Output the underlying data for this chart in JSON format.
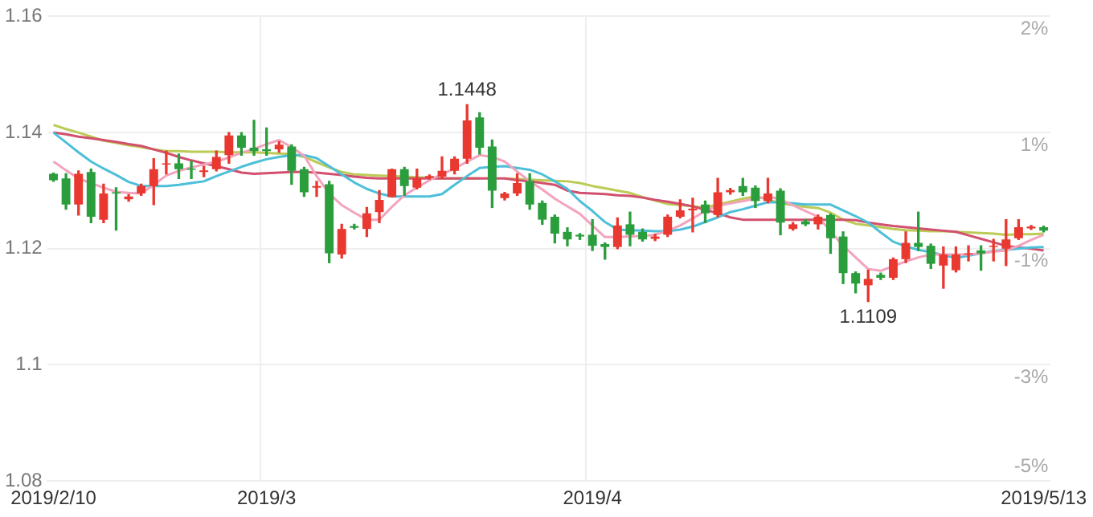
{
  "chart_data": {
    "type": "candlestick",
    "categories": [
      "2019/2/10",
      null,
      null,
      null,
      null,
      null,
      null,
      null,
      null,
      null,
      null,
      null,
      null,
      null,
      null,
      null,
      null,
      "2019/3",
      null,
      null,
      null,
      null,
      null,
      null,
      null,
      null,
      null,
      null,
      null,
      null,
      null,
      null,
      null,
      null,
      null,
      null,
      null,
      null,
      null,
      null,
      null,
      null,
      null,
      "2019/4",
      null,
      null,
      null,
      null,
      null,
      null,
      null,
      null,
      null,
      null,
      null,
      null,
      null,
      null,
      null,
      null,
      null,
      null,
      null,
      null,
      null,
      null,
      null,
      null,
      null,
      null,
      null,
      null,
      null,
      null,
      null,
      null,
      null,
      null,
      null,
      "2019/5/13"
    ],
    "ohlc": [
      [
        1.1329,
        1.133,
        1.1316,
        1.1318
      ],
      [
        1.1321,
        1.1329,
        1.1268,
        1.1276
      ],
      [
        1.1276,
        1.1334,
        1.1258,
        1.1329
      ],
      [
        1.1332,
        1.1337,
        1.1245,
        1.1255
      ],
      [
        1.125,
        1.1311,
        1.1245,
        1.1295
      ],
      [
        1.1297,
        1.1305,
        1.1232,
        1.1295
      ],
      [
        1.1285,
        1.1293,
        1.1282,
        1.129
      ],
      [
        1.1295,
        1.1311,
        1.1292,
        1.1308
      ],
      [
        1.1308,
        1.1355,
        1.1276,
        1.1337
      ],
      [
        1.1345,
        1.1368,
        1.1329,
        1.1347
      ],
      [
        1.1347,
        1.1363,
        1.1321,
        1.1337
      ],
      [
        1.1338,
        1.135,
        1.1321,
        1.1336
      ],
      [
        1.1332,
        1.1342,
        1.1324,
        1.1335
      ],
      [
        1.1337,
        1.1368,
        1.1334,
        1.1358
      ],
      [
        1.1361,
        1.14,
        1.1347,
        1.1395
      ],
      [
        1.1395,
        1.14,
        1.1361,
        1.1374
      ],
      [
        1.1374,
        1.1421,
        1.1361,
        1.1368
      ],
      [
        1.1371,
        1.1408,
        1.1361,
        1.1368
      ],
      [
        1.1371,
        1.1384,
        1.1366,
        1.1379
      ],
      [
        1.1376,
        1.1379,
        1.1311,
        1.1334
      ],
      [
        1.1337,
        1.134,
        1.129,
        1.1297
      ],
      [
        1.1305,
        1.1316,
        1.129,
        1.1308
      ],
      [
        1.1311,
        1.1316,
        1.1176,
        1.1192
      ],
      [
        1.119,
        1.1242,
        1.1184,
        1.1234
      ],
      [
        1.1239,
        1.1242,
        1.1234,
        1.1236
      ],
      [
        1.1234,
        1.1271,
        1.1221,
        1.1261
      ],
      [
        1.1263,
        1.13,
        1.1245,
        1.1284
      ],
      [
        1.1289,
        1.1337,
        1.1289,
        1.1337
      ],
      [
        1.1337,
        1.134,
        1.1292,
        1.1308
      ],
      [
        1.1305,
        1.1337,
        1.1303,
        1.1321
      ],
      [
        1.1322,
        1.1327,
        1.132,
        1.1325
      ],
      [
        1.1324,
        1.1358,
        1.1321,
        1.1334
      ],
      [
        1.1334,
        1.1358,
        1.1329,
        1.1355
      ],
      [
        1.1355,
        1.1448,
        1.1347,
        1.1421
      ],
      [
        1.1426,
        1.1434,
        1.1363,
        1.1374
      ],
      [
        1.1376,
        1.1387,
        1.1271,
        1.13
      ],
      [
        1.1287,
        1.1297,
        1.1284,
        1.1295
      ],
      [
        1.1295,
        1.1329,
        1.1292,
        1.1313
      ],
      [
        1.1316,
        1.1329,
        1.1268,
        1.1276
      ],
      [
        1.1279,
        1.1282,
        1.1242,
        1.125
      ],
      [
        1.1255,
        1.1258,
        1.121,
        1.1226
      ],
      [
        1.1229,
        1.1236,
        1.1205,
        1.1216
      ],
      [
        1.1224,
        1.1226,
        1.1216,
        1.1221
      ],
      [
        1.1224,
        1.125,
        1.1197,
        1.1205
      ],
      [
        1.1208,
        1.121,
        1.1182,
        1.1203
      ],
      [
        1.1203,
        1.1253,
        1.12,
        1.124
      ],
      [
        1.1242,
        1.1263,
        1.1205,
        1.1224
      ],
      [
        1.1229,
        1.1234,
        1.1213,
        1.1216
      ],
      [
        1.1217,
        1.1225,
        1.1214,
        1.1221
      ],
      [
        1.1224,
        1.1258,
        1.1221,
        1.1255
      ],
      [
        1.1255,
        1.1284,
        1.1253,
        1.1266
      ],
      [
        1.1266,
        1.1287,
        1.1229,
        1.1269
      ],
      [
        1.1276,
        1.1282,
        1.1245,
        1.1261
      ],
      [
        1.1258,
        1.1321,
        1.1255,
        1.1297
      ],
      [
        1.1297,
        1.1304,
        1.1294,
        1.1301
      ],
      [
        1.1308,
        1.1321,
        1.1292,
        1.1297
      ],
      [
        1.1305,
        1.1308,
        1.1271,
        1.1282
      ],
      [
        1.1282,
        1.1321,
        1.1279,
        1.1295
      ],
      [
        1.13,
        1.1303,
        1.1224,
        1.1245
      ],
      [
        1.1234,
        1.1245,
        1.1232,
        1.1242
      ],
      [
        1.1247,
        1.125,
        1.124,
        1.1242
      ],
      [
        1.1242,
        1.1258,
        1.1234,
        1.1255
      ],
      [
        1.1258,
        1.126,
        1.1192,
        1.1218
      ],
      [
        1.1221,
        1.1229,
        1.114,
        1.1158
      ],
      [
        1.1158,
        1.116,
        1.1124,
        1.114
      ],
      [
        1.1137,
        1.1163,
        1.1109,
        1.1148
      ],
      [
        1.1155,
        1.1158,
        1.1147,
        1.115
      ],
      [
        1.115,
        1.1184,
        1.1147,
        1.1182
      ],
      [
        1.1182,
        1.1229,
        1.1176,
        1.121
      ],
      [
        1.121,
        1.1263,
        1.1197,
        1.1203
      ],
      [
        1.1205,
        1.1208,
        1.1166,
        1.1174
      ],
      [
        1.1171,
        1.1203,
        1.1132,
        1.119
      ],
      [
        1.1163,
        1.1203,
        1.116,
        1.119
      ],
      [
        1.119,
        1.1205,
        1.1179,
        1.1192
      ],
      [
        1.1197,
        1.1205,
        1.1163,
        1.1192
      ],
      [
        1.1203,
        1.1216,
        1.1179,
        1.1205
      ],
      [
        1.12,
        1.125,
        1.1171,
        1.1216
      ],
      [
        1.1218,
        1.125,
        1.1216,
        1.1237
      ],
      [
        1.1235,
        1.124,
        1.1233,
        1.1238
      ],
      [
        1.1237,
        1.1239,
        1.1229,
        1.1231
      ]
    ],
    "colors": [
      "#2a9d3c",
      "#2a9d3c",
      "#e8382f",
      "#2a9d3c",
      "#e8382f",
      "#2a9d3c",
      "#e8382f",
      "#e8382f",
      "#e8382f",
      "#e8382f",
      "#2a9d3c",
      "#2a9d3c",
      "#e8382f",
      "#e8382f",
      "#e8382f",
      "#2a9d3c",
      "#2a9d3c",
      "#2a9d3c",
      "#e8382f",
      "#2a9d3c",
      "#2a9d3c",
      "#e8382f",
      "#2a9d3c",
      "#e8382f",
      "#2a9d3c",
      "#e8382f",
      "#e8382f",
      "#e8382f",
      "#2a9d3c",
      "#e8382f",
      "#e8382f",
      "#e8382f",
      "#e8382f",
      "#e8382f",
      "#2a9d3c",
      "#2a9d3c",
      "#e8382f",
      "#e8382f",
      "#2a9d3c",
      "#2a9d3c",
      "#2a9d3c",
      "#2a9d3c",
      "#2a9d3c",
      "#2a9d3c",
      "#2a9d3c",
      "#e8382f",
      "#2a9d3c",
      "#2a9d3c",
      "#e8382f",
      "#e8382f",
      "#e8382f",
      "#e8382f",
      "#2a9d3c",
      "#e8382f",
      "#e8382f",
      "#2a9d3c",
      "#2a9d3c",
      "#e8382f",
      "#2a9d3c",
      "#e8382f",
      "#2a9d3c",
      "#e8382f",
      "#2a9d3c",
      "#2a9d3c",
      "#2a9d3c",
      "#e8382f",
      "#2a9d3c",
      "#e8382f",
      "#e8382f",
      "#2a9d3c",
      "#2a9d3c",
      "#e8382f",
      "#e8382f",
      "#e8382f",
      "#2a9d3c",
      "#e8382f",
      "#e8382f",
      "#e8382f",
      "#e8382f",
      "#2a9d3c"
    ],
    "series": [
      {
        "type": "line",
        "color": "#f4a3bd",
        "values": [
          1.135,
          1.1335,
          1.1321,
          1.1313,
          1.1305,
          1.1298,
          1.1296,
          1.1295,
          1.131,
          1.1326,
          1.1334,
          1.134,
          1.1345,
          1.135,
          1.1357,
          1.1365,
          1.1372,
          1.138,
          1.1387,
          1.1375,
          1.136,
          1.1325,
          1.1295,
          1.1275,
          1.1262,
          1.125,
          1.125,
          1.1272,
          1.1292,
          1.1305,
          1.1318,
          1.1328,
          1.1338,
          1.135,
          1.1361,
          1.1358,
          1.135,
          1.1333,
          1.1316,
          1.1302,
          1.1286,
          1.1273,
          1.126,
          1.124,
          1.122,
          1.122,
          1.1221,
          1.1222,
          1.1224,
          1.1231,
          1.124,
          1.1252,
          1.1265,
          1.1274,
          1.1278,
          1.1282,
          1.1286,
          1.129,
          1.1285,
          1.1275,
          1.1265,
          1.1255,
          1.123,
          1.1205,
          1.1185,
          1.1165,
          1.1162,
          1.117,
          1.1178,
          1.1185,
          1.119,
          1.119,
          1.119,
          1.119,
          1.1192,
          1.1195,
          1.1197,
          1.1205,
          1.1215,
          1.1224
        ]
      },
      {
        "type": "line",
        "color": "#4dbfd9",
        "values": [
          1.14,
          1.1383,
          1.1366,
          1.135,
          1.1338,
          1.1327,
          1.1315,
          1.1308,
          1.1308,
          1.1308,
          1.131,
          1.1313,
          1.1316,
          1.1325,
          1.1333,
          1.1341,
          1.1348,
          1.1354,
          1.1358,
          1.1361,
          1.1361,
          1.1356,
          1.1342,
          1.1328,
          1.1314,
          1.1303,
          1.1295,
          1.129,
          1.129,
          1.129,
          1.129,
          1.1294,
          1.131,
          1.1325,
          1.1339,
          1.1341,
          1.1342,
          1.1339,
          1.1336,
          1.1328,
          1.1316,
          1.1303,
          1.1282,
          1.1265,
          1.1246,
          1.1233,
          1.1232,
          1.1231,
          1.123,
          1.123,
          1.1233,
          1.1238,
          1.1246,
          1.1254,
          1.1263,
          1.1268,
          1.1274,
          1.128,
          1.128,
          1.1278,
          1.1276,
          1.1276,
          1.1276,
          1.1266,
          1.1256,
          1.1245,
          1.1228,
          1.1212,
          1.1204,
          1.1198,
          1.1194,
          1.1189,
          1.1184,
          1.1188,
          1.1192,
          1.1196,
          1.1198,
          1.12,
          1.1202,
          1.1203
        ]
      },
      {
        "type": "line",
        "color": "#d2506e",
        "values": [
          1.14,
          1.1397,
          1.1393,
          1.139,
          1.1387,
          1.1384,
          1.138,
          1.1377,
          1.1371,
          1.1365,
          1.1358,
          1.1352,
          1.1347,
          1.1342,
          1.1337,
          1.1331,
          1.1329,
          1.133,
          1.1331,
          1.1332,
          1.1332,
          1.1331,
          1.1329,
          1.1327,
          1.1324,
          1.1322,
          1.1321,
          1.1321,
          1.1321,
          1.1321,
          1.1321,
          1.1321,
          1.1321,
          1.1321,
          1.1321,
          1.1321,
          1.1321,
          1.1318,
          1.1316,
          1.1313,
          1.131,
          1.13,
          1.1296,
          1.1295,
          1.1294,
          1.1292,
          1.1291,
          1.1288,
          1.1284,
          1.1281,
          1.1277,
          1.1273,
          1.1267,
          1.1261,
          1.1254,
          1.125,
          1.125,
          1.125,
          1.125,
          1.125,
          1.125,
          1.125,
          1.125,
          1.125,
          1.1249,
          1.1245,
          1.1242,
          1.1239,
          1.1237,
          1.1235,
          1.1233,
          1.1231,
          1.1229,
          1.1223,
          1.1217,
          1.1211,
          1.1205,
          1.1202,
          1.12,
          1.1197
        ]
      },
      {
        "type": "line",
        "color": "#bccb55",
        "values": [
          1.1413,
          1.1406,
          1.14,
          1.1393,
          1.1386,
          1.1382,
          1.1378,
          1.1375,
          1.1371,
          1.1368,
          1.1368,
          1.1367,
          1.1367,
          1.1367,
          1.1366,
          1.1366,
          1.1366,
          1.1365,
          1.1364,
          1.1363,
          1.1358,
          1.1349,
          1.134,
          1.1332,
          1.1328,
          1.1327,
          1.1326,
          1.1325,
          1.1324,
          1.1323,
          1.1322,
          1.1321,
          1.1321,
          1.1321,
          1.1321,
          null,
          1.1321,
          1.132,
          1.1319,
          1.1318,
          1.1317,
          1.1316,
          1.1313,
          1.1308,
          1.1304,
          1.13,
          1.1296,
          1.1289,
          1.1283,
          1.1277,
          1.1275,
          1.1273,
          1.1271,
          1.1276,
          1.1281,
          1.1286,
          1.129,
          1.1285,
          1.1278,
          1.1275,
          1.1272,
          1.127,
          1.1262,
          1.125,
          1.1243,
          1.124,
          1.1237,
          1.1234,
          1.1232,
          1.1231,
          1.123,
          1.123,
          1.1229,
          1.1228,
          1.1227,
          1.1226,
          1.1224,
          1.1225,
          1.1225,
          1.1226
        ]
      }
    ],
    "annotations": [
      {
        "text": "1.1448",
        "y": 1.1448
      },
      "1.1109",
      "2%",
      "1%",
      "-1%",
      "-3%",
      "-5%"
    ],
    "ylim": [
      1.08,
      1.16
    ],
    "yticks": [
      1.08,
      1.1,
      1.12,
      1.14,
      1.16
    ],
    "grid": true,
    "marker": "none"
  }
}
